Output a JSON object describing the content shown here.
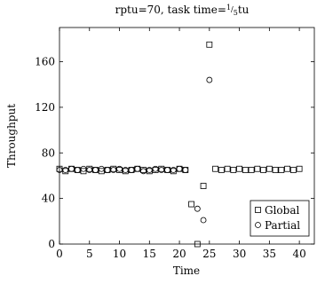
{
  "chart_data": {
    "type": "scatter",
    "title": "rptu=70, task time=1/5tu",
    "title_parts": {
      "prefix": "rptu=70, task time=",
      "frac_num": "1",
      "frac_den": "5",
      "suffix": "tu"
    },
    "xlabel": "Time",
    "ylabel": "Throughput",
    "xlim": [
      0,
      42.5
    ],
    "ylim": [
      0,
      190
    ],
    "xticks": [
      0,
      5,
      10,
      15,
      20,
      25,
      30,
      35,
      40
    ],
    "yticks": [
      0,
      40,
      80,
      120,
      160
    ],
    "grid": false,
    "legend_position": "bottom-right",
    "series": [
      {
        "name": "Global",
        "marker": "square",
        "x": [
          0,
          1,
          2,
          3,
          4,
          5,
          6,
          7,
          8,
          9,
          10,
          11,
          12,
          13,
          14,
          15,
          16,
          17,
          18,
          19,
          20,
          21,
          22,
          23,
          24,
          25,
          26,
          27,
          28,
          29,
          30,
          31,
          32,
          33,
          34,
          35,
          36,
          37,
          38,
          39,
          40
        ],
        "y": [
          66,
          64,
          66,
          65,
          64,
          66,
          65,
          64,
          65,
          66,
          65,
          64,
          65,
          66,
          65,
          64,
          65,
          66,
          65,
          64,
          66,
          65,
          35,
          0,
          51,
          175,
          66,
          65,
          66,
          65,
          66,
          65,
          65,
          66,
          65,
          66,
          65,
          65,
          66,
          65,
          66
        ]
      },
      {
        "name": "Partial",
        "marker": "circle",
        "x": [
          0,
          1,
          2,
          3,
          4,
          5,
          6,
          7,
          8,
          9,
          10,
          11,
          12,
          13,
          14,
          15,
          16,
          17,
          18,
          19,
          20,
          21,
          23,
          24,
          25
        ],
        "y": [
          65,
          65,
          66,
          65,
          66,
          65,
          65,
          66,
          65,
          65,
          66,
          65,
          65,
          66,
          64,
          65,
          66,
          65,
          65,
          65,
          66,
          65,
          31,
          21,
          144
        ]
      }
    ]
  }
}
